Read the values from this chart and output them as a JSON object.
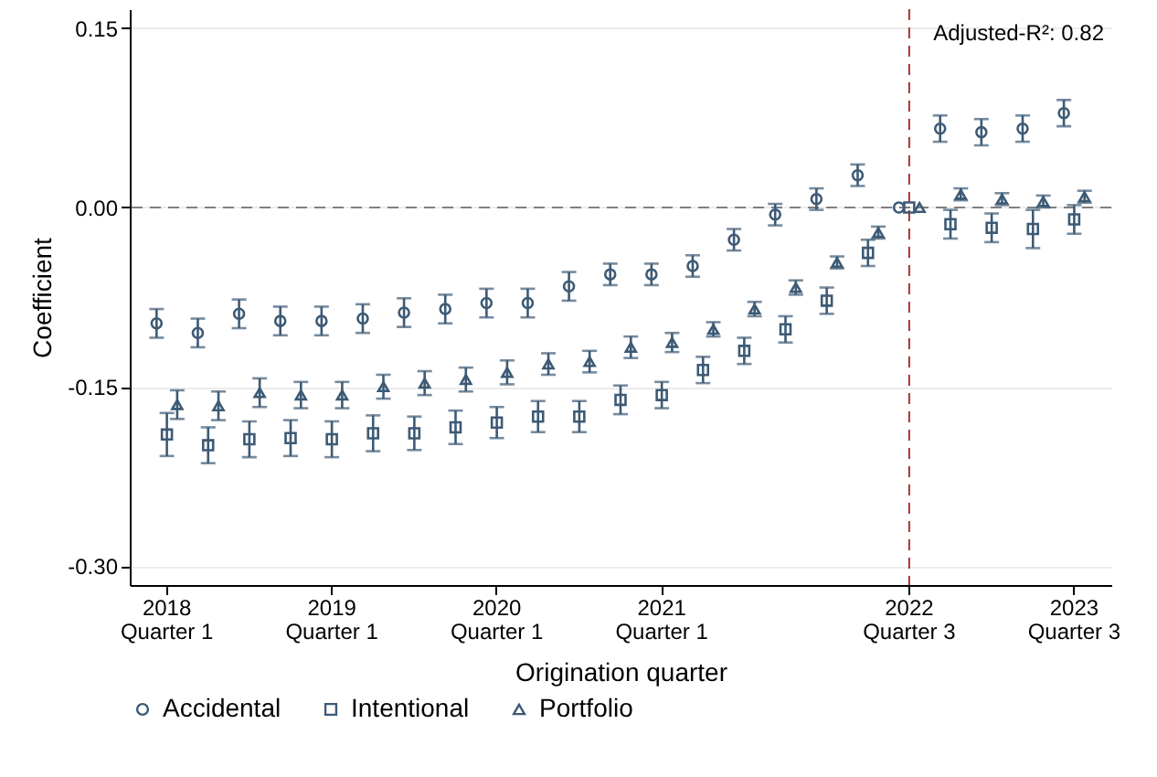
{
  "chart_data": {
    "type": "scatter",
    "xlabel": "Origination quarter",
    "ylabel": "Coefficient",
    "annotations": [
      "Adjusted-R²: 0.82"
    ],
    "categories": [
      "2018\nQuarter 1",
      null,
      null,
      null,
      "2019\nQuarter 1",
      null,
      null,
      null,
      "2020\nQuarter 1",
      null,
      null,
      null,
      "2021\nQuarter 1",
      null,
      null,
      null,
      null,
      null,
      "2022\nQuarter 3",
      null,
      null,
      null,
      "2023\nQuarter 3"
    ],
    "ylim": [
      -0.316,
      0.166
    ],
    "yticks": [
      {
        "value": 0.15,
        "label": "0.15"
      },
      {
        "value": 0,
        "label": "0.00"
      },
      {
        "value": -0.15,
        "label": "-0.15"
      },
      {
        "value": -0.3,
        "label": "-0.30"
      }
    ],
    "grid": "y",
    "legend": "bottom",
    "ref_lines": [
      {
        "axis": "y",
        "value": 0,
        "color": "#808080",
        "line_style": "dashed"
      },
      {
        "axis": "x",
        "value": "2022\nQuarter 3",
        "color": "#a83232",
        "line_style": "dashed"
      }
    ],
    "series": [
      {
        "name": "Accidental",
        "color": "#3d5a75",
        "marker": "circle",
        "values": [
          -0.097,
          -0.105,
          -0.089,
          -0.095,
          -0.095,
          -0.093,
          -0.088,
          -0.085,
          -0.08,
          -0.08,
          -0.066,
          -0.056,
          -0.056,
          -0.049,
          -0.027,
          -0.006,
          0.007,
          0.027,
          0,
          0.066,
          0.063,
          0.066,
          0.079
        ],
        "errors": [
          0.012,
          0.012,
          0.012,
          0.012,
          0.012,
          0.012,
          0.012,
          0.012,
          0.012,
          0.012,
          0.012,
          0.009,
          0.009,
          0.009,
          0.009,
          0.009,
          0.009,
          0.009,
          null,
          0.011,
          0.011,
          0.011,
          0.011
        ]
      },
      {
        "name": "Intentional",
        "color": "#3d5a75",
        "marker": "square",
        "values": [
          -0.19,
          -0.199,
          -0.194,
          -0.193,
          -0.194,
          -0.189,
          -0.189,
          -0.184,
          -0.18,
          -0.175,
          -0.175,
          -0.161,
          -0.157,
          -0.136,
          -0.12,
          -0.102,
          -0.078,
          -0.038,
          0,
          -0.014,
          -0.017,
          -0.018,
          -0.01
        ],
        "errors": [
          0.018,
          0.015,
          0.015,
          0.015,
          0.015,
          0.015,
          0.014,
          0.014,
          0.013,
          0.013,
          0.013,
          0.012,
          0.011,
          0.011,
          0.011,
          0.011,
          0.011,
          0.011,
          null,
          0.012,
          0.012,
          0.016,
          0.012
        ]
      },
      {
        "name": "Portfolio",
        "color": "#3d5a75",
        "marker": "triangle",
        "values": [
          -0.165,
          -0.166,
          -0.155,
          -0.157,
          -0.157,
          -0.15,
          -0.147,
          -0.144,
          -0.138,
          -0.131,
          -0.129,
          -0.117,
          -0.113,
          -0.102,
          -0.085,
          -0.067,
          -0.046,
          -0.021,
          0,
          0.011,
          0.007,
          0.005,
          0.009
        ],
        "errors": [
          0.012,
          0.012,
          0.012,
          0.011,
          0.011,
          0.01,
          0.01,
          0.01,
          0.01,
          0.009,
          0.009,
          0.009,
          0.008,
          0.006,
          0.006,
          0.006,
          0.005,
          0.005,
          null,
          0.005,
          0.005,
          0.005,
          0.005
        ]
      }
    ]
  }
}
